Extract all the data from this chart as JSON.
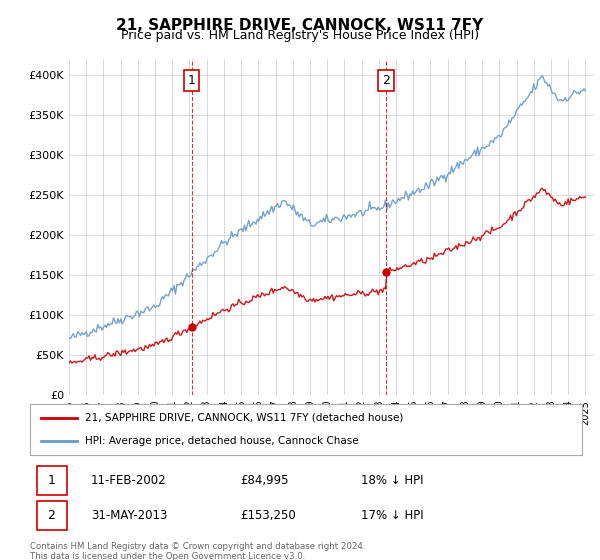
{
  "title": "21, SAPPHIRE DRIVE, CANNOCK, WS11 7FY",
  "subtitle": "Price paid vs. HM Land Registry's House Price Index (HPI)",
  "legend_line1": "21, SAPPHIRE DRIVE, CANNOCK, WS11 7FY (detached house)",
  "legend_line2": "HPI: Average price, detached house, Cannock Chase",
  "table_row1": [
    "1",
    "11-FEB-2002",
    "£84,995",
    "18% ↓ HPI"
  ],
  "table_row2": [
    "2",
    "31-MAY-2013",
    "£153,250",
    "17% ↓ HPI"
  ],
  "footer": "Contains HM Land Registry data © Crown copyright and database right 2024.\nThis data is licensed under the Open Government Licence v3.0.",
  "red_color": "#cc0000",
  "blue_color": "#6699cc",
  "marker1_year": 2002.12,
  "marker1_value": 84995,
  "marker2_year": 2013.42,
  "marker2_value": 153250,
  "ylim": [
    0,
    420000
  ],
  "yticks": [
    0,
    50000,
    100000,
    150000,
    200000,
    250000,
    300000,
    350000,
    400000
  ],
  "background_color": "#ffffff",
  "grid_color": "#cccccc"
}
